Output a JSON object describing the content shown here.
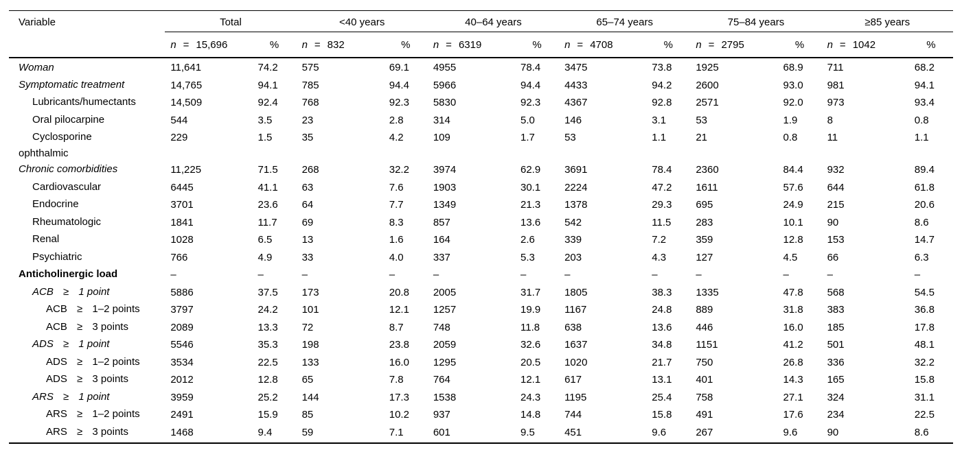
{
  "table": {
    "variable_header": "Variable",
    "header": {
      "n_symbol": "n",
      "eq_symbol": "=",
      "pct_symbol": "%",
      "groups": [
        {
          "label": "Total",
          "n": "15,696"
        },
        {
          "label": "<40 years",
          "n": "832"
        },
        {
          "label": "40–64 years",
          "n": "6319"
        },
        {
          "label": "65–74 years",
          "n": "4708"
        },
        {
          "label": "75–84 years",
          "n": "2795"
        },
        {
          "label": "≥85 years",
          "n": "1042"
        }
      ]
    },
    "rows": [
      {
        "label": "Woman",
        "emphasis": "italic",
        "indent": 0,
        "values": [
          "11,641",
          "74.2",
          "575",
          "69.1",
          "4955",
          "78.4",
          "3475",
          "73.8",
          "1925",
          "68.9",
          "711",
          "68.2"
        ]
      },
      {
        "label": "Symptomatic treatment",
        "emphasis": "italic",
        "indent": 0,
        "values": [
          "14,765",
          "94.1",
          "785",
          "94.4",
          "5966",
          "94.4",
          "4433",
          "94.2",
          "2600",
          "93.0",
          "981",
          "94.1"
        ]
      },
      {
        "label": "Lubricants/humectants",
        "emphasis": "none",
        "indent": 1,
        "values": [
          "14,509",
          "92.4",
          "768",
          "92.3",
          "5830",
          "92.3",
          "4367",
          "92.8",
          "2571",
          "92.0",
          "973",
          "93.4"
        ]
      },
      {
        "label": "Oral pilocarpine",
        "emphasis": "none",
        "indent": 1,
        "values": [
          "544",
          "3.5",
          "23",
          "2.8",
          "314",
          "5.0",
          "146",
          "3.1",
          "53",
          "1.9",
          "8",
          "0.8"
        ]
      },
      {
        "label": "Cyclosporine ophthalmic",
        "emphasis": "none",
        "indent": 1,
        "values": [
          "229",
          "1.5",
          "35",
          "4.2",
          "109",
          "1.7",
          "53",
          "1.1",
          "21",
          "0.8",
          "11",
          "1.1"
        ]
      },
      {
        "label": "Chronic comorbidities",
        "emphasis": "italic",
        "indent": 0,
        "values": [
          "11,225",
          "71.5",
          "268",
          "32.2",
          "3974",
          "62.9",
          "3691",
          "78.4",
          "2360",
          "84.4",
          "932",
          "89.4"
        ]
      },
      {
        "label": "Cardiovascular",
        "emphasis": "none",
        "indent": 1,
        "values": [
          "6445",
          "41.1",
          "63",
          "7.6",
          "1903",
          "30.1",
          "2224",
          "47.2",
          "1611",
          "57.6",
          "644",
          "61.8"
        ]
      },
      {
        "label": "Endocrine",
        "emphasis": "none",
        "indent": 1,
        "values": [
          "3701",
          "23.6",
          "64",
          "7.7",
          "1349",
          "21.3",
          "1378",
          "29.3",
          "695",
          "24.9",
          "215",
          "20.6"
        ]
      },
      {
        "label": "Rheumatologic",
        "emphasis": "none",
        "indent": 1,
        "values": [
          "1841",
          "11.7",
          "69",
          "8.3",
          "857",
          "13.6",
          "542",
          "11.5",
          "283",
          "10.1",
          "90",
          "8.6"
        ]
      },
      {
        "label": "Renal",
        "emphasis": "none",
        "indent": 1,
        "values": [
          "1028",
          "6.5",
          "13",
          "1.6",
          "164",
          "2.6",
          "339",
          "7.2",
          "359",
          "12.8",
          "153",
          "14.7"
        ]
      },
      {
        "label": "Psychiatric",
        "emphasis": "none",
        "indent": 1,
        "values": [
          "766",
          "4.9",
          "33",
          "4.0",
          "337",
          "5.3",
          "203",
          "4.3",
          "127",
          "4.5",
          "66",
          "6.3"
        ]
      },
      {
        "label": "Anticholinergic load",
        "emphasis": "bold",
        "indent": 0,
        "values": [
          "–",
          "–",
          "–",
          "–",
          "–",
          "–",
          "–",
          "–",
          "–",
          "–",
          "–",
          "–"
        ]
      },
      {
        "label_parts": [
          "ACB",
          "≥",
          "1 point"
        ],
        "emphasis": "italic",
        "indent": 1,
        "values": [
          "5886",
          "37.5",
          "173",
          "20.8",
          "2005",
          "31.7",
          "1805",
          "38.3",
          "1335",
          "47.8",
          "568",
          "54.5"
        ]
      },
      {
        "label_parts": [
          "ACB",
          "≥",
          "1–2 points"
        ],
        "emphasis": "none",
        "indent": 2,
        "values": [
          "3797",
          "24.2",
          "101",
          "12.1",
          "1257",
          "19.9",
          "1167",
          "24.8",
          "889",
          "31.8",
          "383",
          "36.8"
        ]
      },
      {
        "label_parts": [
          "ACB",
          "≥",
          "3 points"
        ],
        "emphasis": "none",
        "indent": 2,
        "values": [
          "2089",
          "13.3",
          "72",
          "8.7",
          "748",
          "11.8",
          "638",
          "13.6",
          "446",
          "16.0",
          "185",
          "17.8"
        ]
      },
      {
        "label_parts": [
          "ADS",
          "≥",
          "1 point"
        ],
        "emphasis": "italic",
        "indent": 1,
        "values": [
          "5546",
          "35.3",
          "198",
          "23.8",
          "2059",
          "32.6",
          "1637",
          "34.8",
          "1151",
          "41.2",
          "501",
          "48.1"
        ]
      },
      {
        "label_parts": [
          "ADS",
          "≥",
          "1–2 points"
        ],
        "emphasis": "none",
        "indent": 2,
        "values": [
          "3534",
          "22.5",
          "133",
          "16.0",
          "1295",
          "20.5",
          "1020",
          "21.7",
          "750",
          "26.8",
          "336",
          "32.2"
        ]
      },
      {
        "label_parts": [
          "ADS",
          "≥",
          "3 points"
        ],
        "emphasis": "none",
        "indent": 2,
        "values": [
          "2012",
          "12.8",
          "65",
          "7.8",
          "764",
          "12.1",
          "617",
          "13.1",
          "401",
          "14.3",
          "165",
          "15.8"
        ]
      },
      {
        "label_parts": [
          "ARS",
          "≥",
          "1 point"
        ],
        "emphasis": "italic",
        "indent": 1,
        "values": [
          "3959",
          "25.2",
          "144",
          "17.3",
          "1538",
          "24.3",
          "1195",
          "25.4",
          "758",
          "27.1",
          "324",
          "31.1"
        ]
      },
      {
        "label_parts": [
          "ARS",
          "≥",
          "1–2 points"
        ],
        "emphasis": "none",
        "indent": 2,
        "values": [
          "2491",
          "15.9",
          "85",
          "10.2",
          "937",
          "14.8",
          "744",
          "15.8",
          "491",
          "17.6",
          "234",
          "22.5"
        ]
      },
      {
        "label_parts": [
          "ARS",
          "≥",
          "3 points"
        ],
        "emphasis": "none",
        "indent": 2,
        "values": [
          "1468",
          "9.4",
          "59",
          "7.1",
          "601",
          "9.5",
          "451",
          "9.6",
          "267",
          "9.6",
          "90",
          "8.6"
        ]
      }
    ]
  }
}
